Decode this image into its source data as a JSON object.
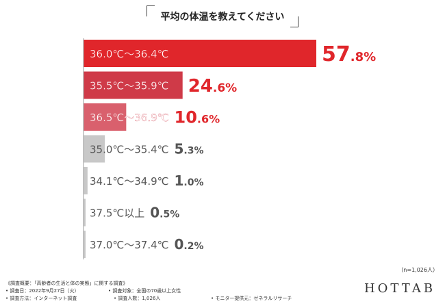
{
  "title": "平均の体温を教えてください",
  "colors": {
    "highlight_strong": "#e0262b",
    "highlight_mid": "#cf3a48",
    "highlight_light": "#d9606d",
    "gray_bar": "#c8c8c8",
    "gray_text": "#555555"
  },
  "chart_data": {
    "type": "bar",
    "orientation": "horizontal",
    "title": "平均の体温を教えてください",
    "categories": [
      "36.0℃〜36.4℃",
      "35.5℃〜35.9℃",
      "36.5℃〜36.9℃",
      "35.0℃〜35.4℃",
      "34.1℃〜34.9℃",
      "37.5℃以上",
      "37.0℃〜37.4℃"
    ],
    "values": [
      57.8,
      24.6,
      10.6,
      5.3,
      1.0,
      0.5,
      0.2
    ],
    "value_labels": [
      {
        "int": "57",
        "dec": ".8%"
      },
      {
        "int": "24",
        "dec": ".6%"
      },
      {
        "int": "10",
        "dec": ".6%"
      },
      {
        "int": "5",
        "dec": ".3%"
      },
      {
        "int": "1",
        "dec": ".0%"
      },
      {
        "int": "0",
        "dec": ".5%"
      },
      {
        "int": "0",
        "dec": ".2%"
      }
    ],
    "unit": "%",
    "xlim": [
      0,
      60
    ]
  },
  "sample_note": "（n=1,026人）",
  "footer": {
    "overview": "《調査概要：「高齢者の生活と体の実態」に関する調査》",
    "date": "• 調査日：2022年9月27日（火）",
    "target": "• 調査対象：全国の70歳以上女性",
    "method": "• 調査方法：インターネット調査",
    "count": "• 調査人数：1,026人",
    "provider": "• モニター提供元：ゼネラルリサーチ"
  },
  "logo": "HOTTAB"
}
